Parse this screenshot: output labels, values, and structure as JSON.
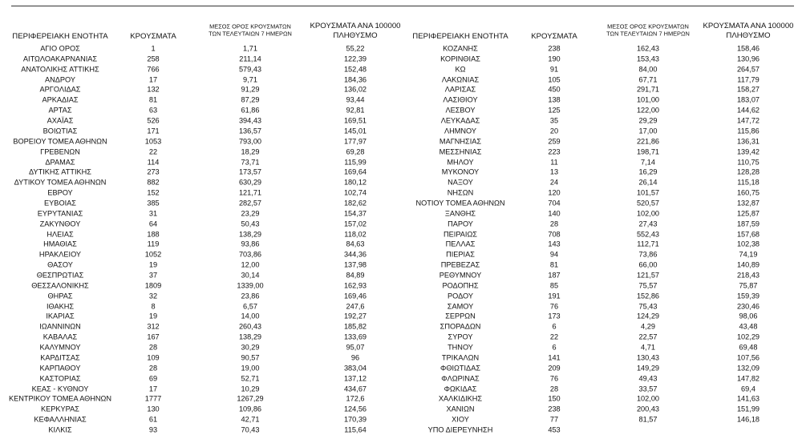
{
  "left": {
    "header": [
      "ΠΕΡΙΦΕΡΕΙΑΚΗ ΕΝΟΤΗΤΑ",
      "ΚΡΟΥΣΜΑΤΑ",
      [
        "ΜΕΣΟΣ ΟΡΟΣ ΚΡΟΥΣΜΑΤΩΝ",
        "ΤΩΝ ΤΕΛΕΥΤΑΙΩΝ 7 ΗΜΕΡΩΝ"
      ],
      [
        "ΚΡΟΥΣΜΑΤΑ ΑΝΑ 100000",
        "ΠΛΗΘΥΣΜΟ"
      ]
    ],
    "rows": [
      [
        "ΑΓΙΟ ΟΡΟΣ",
        "1",
        "1,71",
        "55,22"
      ],
      [
        "ΑΙΤΩΛΟΑΚΑΡΝΑΝΙΑΣ",
        "258",
        "211,14",
        "122,39"
      ],
      [
        "ΑΝΑΤΟΛΙΚΗΣ ΑΤΤΙΚΗΣ",
        "766",
        "579,43",
        "152,48"
      ],
      [
        "ΑΝΔΡΟΥ",
        "17",
        "9,71",
        "184,36"
      ],
      [
        "ΑΡΓΟΛΙΔΑΣ",
        "132",
        "91,29",
        "136,02"
      ],
      [
        "ΑΡΚΑΔΙΑΣ",
        "81",
        "87,29",
        "93,44"
      ],
      [
        "ΑΡΤΑΣ",
        "63",
        "61,86",
        "92,81"
      ],
      [
        "ΑΧΑΪΑΣ",
        "526",
        "394,43",
        "169,51"
      ],
      [
        "ΒΟΙΩΤΙΑΣ",
        "171",
        "136,57",
        "145,01"
      ],
      [
        "ΒΟΡΕΙΟΥ ΤΟΜΕΑ ΑΘΗΝΩΝ",
        "1053",
        "793,00",
        "177,97"
      ],
      [
        "ΓΡΕΒΕΝΩΝ",
        "22",
        "18,29",
        "69,28"
      ],
      [
        "ΔΡΑΜΑΣ",
        "114",
        "73,71",
        "115,99"
      ],
      [
        "ΔΥΤΙΚΗΣ ΑΤΤΙΚΗΣ",
        "273",
        "173,57",
        "169,64"
      ],
      [
        "ΔΥΤΙΚΟΥ ΤΟΜΕΑ ΑΘΗΝΩΝ",
        "882",
        "630,29",
        "180,12"
      ],
      [
        "ΕΒΡΟΥ",
        "152",
        "121,71",
        "102,74"
      ],
      [
        "ΕΥΒΟΙΑΣ",
        "385",
        "282,57",
        "182,62"
      ],
      [
        "ΕΥΡΥΤΑΝΙΑΣ",
        "31",
        "23,29",
        "154,37"
      ],
      [
        "ΖΑΚΥΝΘΟΥ",
        "64",
        "50,43",
        "157,02"
      ],
      [
        "ΗΛΕΙΑΣ",
        "188",
        "138,29",
        "118,02"
      ],
      [
        "ΗΜΑΘΙΑΣ",
        "119",
        "93,86",
        "84,63"
      ],
      [
        "ΗΡΑΚΛΕΙΟΥ",
        "1052",
        "703,86",
        "344,36"
      ],
      [
        "ΘΑΣΟΥ",
        "19",
        "12,00",
        "137,98"
      ],
      [
        "ΘΕΣΠΡΩΤΙΑΣ",
        "37",
        "30,14",
        "84,89"
      ],
      [
        "ΘΕΣΣΑΛΟΝΙΚΗΣ",
        "1809",
        "1339,00",
        "162,93"
      ],
      [
        "ΘΗΡΑΣ",
        "32",
        "23,86",
        "169,46"
      ],
      [
        "ΙΘΑΚΗΣ",
        "8",
        "6,57",
        "247,6"
      ],
      [
        "ΙΚΑΡΙΑΣ",
        "19",
        "14,00",
        "192,27"
      ],
      [
        "ΙΩΑΝΝΙΝΩΝ",
        "312",
        "260,43",
        "185,82"
      ],
      [
        "ΚΑΒΑΛΑΣ",
        "167",
        "138,29",
        "133,69"
      ],
      [
        "ΚΑΛΥΜΝΟΥ",
        "28",
        "30,29",
        "95,07"
      ],
      [
        "ΚΑΡΔΙΤΣΑΣ",
        "109",
        "90,57",
        "96"
      ],
      [
        "ΚΑΡΠΑΘΟΥ",
        "28",
        "19,00",
        "383,04"
      ],
      [
        "ΚΑΣΤΟΡΙΑΣ",
        "69",
        "52,71",
        "137,12"
      ],
      [
        "ΚΕΑΣ - ΚΥΘΝΟΥ",
        "17",
        "10,29",
        "434,67"
      ],
      [
        "ΚΕΝΤΡΙΚΟΥ ΤΟΜΕΑ ΑΘΗΝΩΝ",
        "1777",
        "1267,29",
        "172,6"
      ],
      [
        "ΚΕΡΚΥΡΑΣ",
        "130",
        "109,86",
        "124,56"
      ],
      [
        "ΚΕΦΑΛΛΗΝΙΑΣ",
        "61",
        "42,71",
        "170,39"
      ],
      [
        "ΚΙΛΚΙΣ",
        "93",
        "70,43",
        "115,64"
      ]
    ]
  },
  "right": {
    "header": [
      "ΠΕΡΙΦΕΡΕΙΑΚΗ ΕΝΟΤΗΤΑ",
      "ΚΡΟΥΣΜΑΤΑ",
      [
        "ΜΕΣΟΣ ΟΡΟΣ ΚΡΟΥΣΜΑΤΩΝ",
        "ΤΩΝ ΤΕΛΕΥΤΑΙΩΝ 7 ΗΜΕΡΩΝ"
      ],
      [
        "ΚΡΟΥΣΜΑΤΑ ΑΝΑ 100000",
        "ΠΛΗΘΥΣΜΟ"
      ]
    ],
    "rows": [
      [
        "ΚΟΖΑΝΗΣ",
        "238",
        "162,43",
        "158,46"
      ],
      [
        "ΚΟΡΙΝΘΙΑΣ",
        "190",
        "153,43",
        "130,96"
      ],
      [
        "ΚΩ",
        "91",
        "84,00",
        "264,57"
      ],
      [
        "ΛΑΚΩΝΙΑΣ",
        "105",
        "67,71",
        "117,79"
      ],
      [
        "ΛΑΡΙΣΑΣ",
        "450",
        "291,71",
        "158,27"
      ],
      [
        "ΛΑΣΙΘΙΟΥ",
        "138",
        "101,00",
        "183,07"
      ],
      [
        "ΛΕΣΒΟΥ",
        "125",
        "122,00",
        "144,62"
      ],
      [
        "ΛΕΥΚΑΔΑΣ",
        "35",
        "29,29",
        "147,72"
      ],
      [
        "ΛΗΜΝΟΥ",
        "20",
        "17,00",
        "115,86"
      ],
      [
        "ΜΑΓΝΗΣΙΑΣ",
        "259",
        "221,86",
        "136,31"
      ],
      [
        "ΜΕΣΣΗΝΙΑΣ",
        "223",
        "198,71",
        "139,42"
      ],
      [
        "ΜΗΛΟΥ",
        "11",
        "7,14",
        "110,75"
      ],
      [
        "ΜΥΚΟΝΟΥ",
        "13",
        "16,29",
        "128,28"
      ],
      [
        "ΝΑΞΟΥ",
        "24",
        "26,14",
        "115,18"
      ],
      [
        "ΝΗΣΩΝ",
        "120",
        "101,57",
        "160,75"
      ],
      [
        "ΝΟΤΙΟΥ ΤΟΜΕΑ ΑΘΗΝΩΝ",
        "704",
        "520,57",
        "132,87"
      ],
      [
        "ΞΑΝΘΗΣ",
        "140",
        "102,00",
        "125,87"
      ],
      [
        "ΠΑΡΟΥ",
        "28",
        "27,43",
        "187,59"
      ],
      [
        "ΠΕΙΡΑΙΩΣ",
        "708",
        "552,43",
        "157,68"
      ],
      [
        "ΠΕΛΛΑΣ",
        "143",
        "112,71",
        "102,38"
      ],
      [
        "ΠΙΕΡΙΑΣ",
        "94",
        "73,86",
        "74,19"
      ],
      [
        "ΠΡΕΒΕΖΑΣ",
        "81",
        "66,00",
        "140,89"
      ],
      [
        "ΡΕΘΥΜΝΟΥ",
        "187",
        "121,57",
        "218,43"
      ],
      [
        "ΡΟΔΟΠΗΣ",
        "85",
        "75,57",
        "75,87"
      ],
      [
        "ΡΟΔΟΥ",
        "191",
        "152,86",
        "159,39"
      ],
      [
        "ΣΑΜΟΥ",
        "76",
        "75,43",
        "230,46"
      ],
      [
        "ΣΕΡΡΩΝ",
        "173",
        "124,29",
        "98,06"
      ],
      [
        "ΣΠΟΡΑΔΩΝ",
        "6",
        "4,29",
        "43,48"
      ],
      [
        "ΣΥΡΟΥ",
        "22",
        "22,57",
        "102,29"
      ],
      [
        "ΤΗΝΟΥ",
        "6",
        "4,71",
        "69,48"
      ],
      [
        "ΤΡΙΚΑΛΩΝ",
        "141",
        "130,43",
        "107,56"
      ],
      [
        "ΦΘΙΩΤΙΔΑΣ",
        "209",
        "149,29",
        "132,09"
      ],
      [
        "ΦΛΩΡΙΝΑΣ",
        "76",
        "49,43",
        "147,82"
      ],
      [
        "ΦΩΚΙΔΑΣ",
        "28",
        "33,57",
        "69,4"
      ],
      [
        "ΧΑΛΚΙΔΙΚΗΣ",
        "150",
        "102,00",
        "141,63"
      ],
      [
        "ΧΑΝΙΩΝ",
        "238",
        "200,43",
        "151,99"
      ],
      [
        "ΧΙΟΥ",
        "77",
        "81,57",
        "146,18"
      ],
      [
        "ΥΠΟ ΔΙΕΡΕΥΝΗΣΗ",
        "453"
      ]
    ]
  }
}
